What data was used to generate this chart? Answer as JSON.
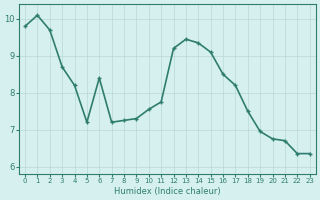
{
  "x": [
    0,
    1,
    2,
    3,
    4,
    5,
    6,
    7,
    8,
    9,
    10,
    11,
    12,
    13,
    14,
    15,
    16,
    17,
    18,
    19,
    20,
    21,
    22,
    23
  ],
  "y": [
    9.8,
    10.1,
    9.7,
    8.7,
    8.2,
    7.2,
    8.4,
    7.2,
    7.25,
    7.3,
    7.55,
    7.75,
    9.2,
    9.45,
    9.35,
    9.1,
    8.5,
    8.2,
    7.5,
    6.95,
    6.75,
    6.7,
    6.35,
    6.35
  ],
  "xlabel": "Humidex (Indice chaleur)",
  "xlim": [
    -0.5,
    23.5
  ],
  "ylim": [
    5.8,
    10.4
  ],
  "yticks": [
    6,
    7,
    8,
    9,
    10
  ],
  "xticks": [
    0,
    1,
    2,
    3,
    4,
    5,
    6,
    7,
    8,
    9,
    10,
    11,
    12,
    13,
    14,
    15,
    16,
    17,
    18,
    19,
    20,
    21,
    22,
    23
  ],
  "line_color": "#2e7d6e",
  "bg_color": "#d6f0ef",
  "grid_color": "#b8d8d4",
  "axis_color": "#2e7d6e",
  "tick_label_color": "#2e7d6e",
  "xlabel_color": "#2e7d6e",
  "line_width": 1.2,
  "marker_size": 3
}
